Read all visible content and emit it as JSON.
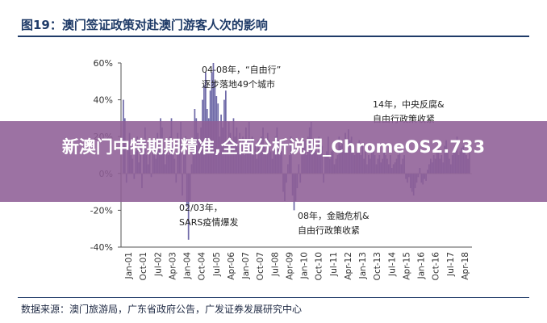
{
  "figure": {
    "title": "图19：澳门签证政策对赴澳门游客人次的影响",
    "source": "数据来源：澳门旅游局，广东省政府公告，广发证券发展研究中心"
  },
  "overlay": {
    "text": "新澳门中特期期精准,全面分析说明_ChromeOS2.733"
  },
  "colors": {
    "bar": "#6f6aa8",
    "axis": "#555555",
    "title": "#1f3b68",
    "overlay": "#8e5e96"
  },
  "chart_data": {
    "type": "bar",
    "title": "",
    "xlabel": "",
    "ylabel": "",
    "ylim": [
      -40,
      60
    ],
    "ytick_labels": [
      "60%",
      "40%",
      "20%",
      "0%",
      "-20%",
      "-40%"
    ],
    "ytick_values": [
      60,
      40,
      20,
      0,
      -20,
      -40
    ],
    "xtick_labels": [
      "Jan-01",
      "Oct-01",
      "Jul-02",
      "Apr-03",
      "Jan-04",
      "Oct-04",
      "Jul-05",
      "Apr-06",
      "Jan-07",
      "Oct-07",
      "Jul-08",
      "Apr-09",
      "Jan-10",
      "Oct-10",
      "Jul-11",
      "Apr-12",
      "Jan-13",
      "Oct-13",
      "Jul-14",
      "Apr-15",
      "Jan-16",
      "Oct-16",
      "Jul-17",
      "Apr-18"
    ],
    "x_start": "2001-01",
    "x_end": "2018-04",
    "values": [
      40,
      30,
      -5,
      15,
      22,
      10,
      8,
      -3,
      12,
      20,
      6,
      18,
      -8,
      15,
      25,
      10,
      5,
      12,
      -2,
      18,
      10,
      8,
      22,
      15,
      30,
      25,
      12,
      5,
      18,
      10,
      20,
      30,
      15,
      8,
      -5,
      22,
      15,
      28,
      -12,
      10,
      20,
      -18,
      -36,
      -15,
      5,
      12,
      35,
      30,
      22,
      18,
      25,
      40,
      48,
      55,
      35,
      30,
      45,
      55,
      60,
      50,
      42,
      38,
      20,
      32,
      25,
      40,
      45,
      15,
      28,
      22,
      18,
      30,
      20,
      25,
      15,
      22,
      12,
      20,
      10,
      25,
      18,
      28,
      15,
      20,
      10,
      15,
      8,
      18,
      12,
      20,
      25,
      15,
      10,
      22,
      18,
      12,
      8,
      15,
      20,
      25,
      18,
      10,
      12,
      -10,
      -15,
      -5,
      5,
      10,
      20,
      -12,
      -20,
      -15,
      -8,
      5,
      -5,
      10,
      15,
      18,
      10,
      20,
      25,
      28,
      18,
      12,
      15,
      10,
      20,
      12,
      15,
      -5,
      10,
      12,
      20,
      8,
      12,
      15,
      5,
      8,
      10,
      20,
      15,
      18,
      12,
      22,
      16,
      24,
      18,
      20,
      15,
      10,
      12,
      15,
      18,
      10,
      15,
      8,
      12,
      5,
      10,
      8,
      12,
      15,
      10,
      5,
      8,
      10,
      6,
      8,
      12,
      10,
      8,
      5,
      10,
      3,
      5,
      6,
      8,
      10,
      12,
      5,
      8,
      10,
      -3,
      -5,
      -2,
      -8,
      -10,
      -12,
      -8,
      -5,
      -2,
      3,
      -5,
      -6,
      -3,
      -4,
      2,
      5,
      8,
      6,
      10,
      8,
      12,
      15,
      8,
      10,
      6,
      15,
      18,
      12,
      8,
      5,
      10,
      12,
      15,
      20,
      10,
      12,
      14,
      15,
      12,
      10,
      8,
      12
    ],
    "annotations": [
      {
        "label": "04-08年，“自由行”逐步落地49个城市"
      },
      {
        "label": "14年，中央反腐&自由行政策收紧"
      },
      {
        "label": "02/03年，SARS疫情爆发"
      },
      {
        "label": "08年，金融危机&自由行政策收紧"
      }
    ]
  }
}
